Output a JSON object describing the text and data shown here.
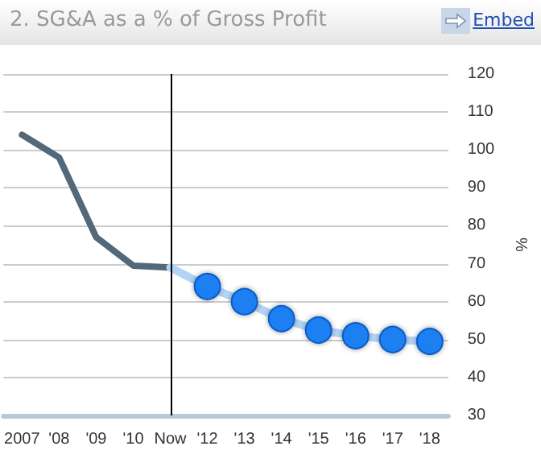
{
  "chart_data": {
    "type": "line",
    "title": "2. SG&A as a % of Gross Profit",
    "ylabel": "%",
    "categories": [
      "2007",
      "'08",
      "'09",
      "'10",
      "Now",
      "'12",
      "'13",
      "'14",
      "'15",
      "'16",
      "'17",
      "'18"
    ],
    "series": [
      {
        "color": "#536878",
        "marker": "none",
        "values": [
          104,
          98,
          77,
          69.5,
          69,
          null,
          null,
          null,
          null,
          null,
          null,
          null
        ]
      },
      {
        "color": "#b3d4f5",
        "marker": "circle",
        "values": [
          null,
          null,
          null,
          null,
          69,
          64,
          60,
          55.5,
          52.5,
          51,
          50,
          49.5
        ]
      }
    ],
    "ylim": [
      30,
      120
    ],
    "yticks": [
      30,
      40,
      50,
      60,
      70,
      80,
      90,
      100,
      110,
      120
    ],
    "grid": "y",
    "ref_lines": [
      {
        "axis": "x",
        "value": "Now",
        "color": "#000000"
      }
    ],
    "annotations": [
      "Embed"
    ]
  }
}
